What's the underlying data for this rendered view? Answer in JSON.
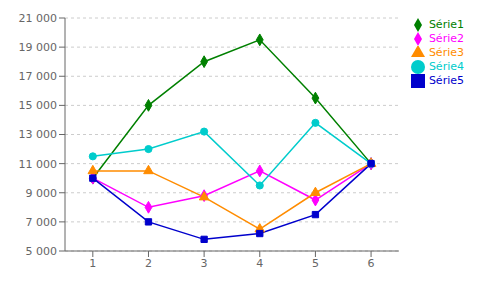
{
  "chart_data": {
    "type": "line",
    "x": [
      1,
      2,
      3,
      4,
      5,
      6
    ],
    "xlim": [
      0.5,
      6.5
    ],
    "xticks": [
      1,
      2,
      3,
      4,
      5,
      6
    ],
    "ylim": [
      5000,
      21000
    ],
    "yticks": [
      {
        "value": 5000,
        "label": "5 000"
      },
      {
        "value": 7000,
        "label": "7 000"
      },
      {
        "value": 9000,
        "label": "9 000"
      },
      {
        "value": 11000,
        "label": "11 000"
      },
      {
        "value": 13000,
        "label": "13 000"
      },
      {
        "value": 15000,
        "label": "15 000"
      },
      {
        "value": 17000,
        "label": "17 000"
      },
      {
        "value": 19000,
        "label": "19 000"
      },
      {
        "value": 21000,
        "label": "21 000"
      }
    ],
    "grid": true,
    "legend": "right",
    "series": [
      {
        "name": "Série1",
        "color": "#008000",
        "marker": "diamond",
        "values": [
          10000,
          15000,
          18000,
          19500,
          15500,
          11000
        ]
      },
      {
        "name": "Série2",
        "color": "#FF00FF",
        "marker": "diamond",
        "values": [
          10000,
          8000,
          8800,
          10500,
          8500,
          11000
        ]
      },
      {
        "name": "Série3",
        "color": "#FF8C00",
        "marker": "triangle",
        "values": [
          10500,
          10500,
          8700,
          6500,
          9000,
          11000
        ]
      },
      {
        "name": "Série4",
        "color": "#00CCCC",
        "marker": "circle",
        "values": [
          11500,
          12000,
          13200,
          9500,
          13800,
          11000
        ]
      },
      {
        "name": "Série5",
        "color": "#0000CC",
        "marker": "square",
        "values": [
          10000,
          7000,
          5800,
          6200,
          7500,
          11000
        ]
      }
    ]
  }
}
